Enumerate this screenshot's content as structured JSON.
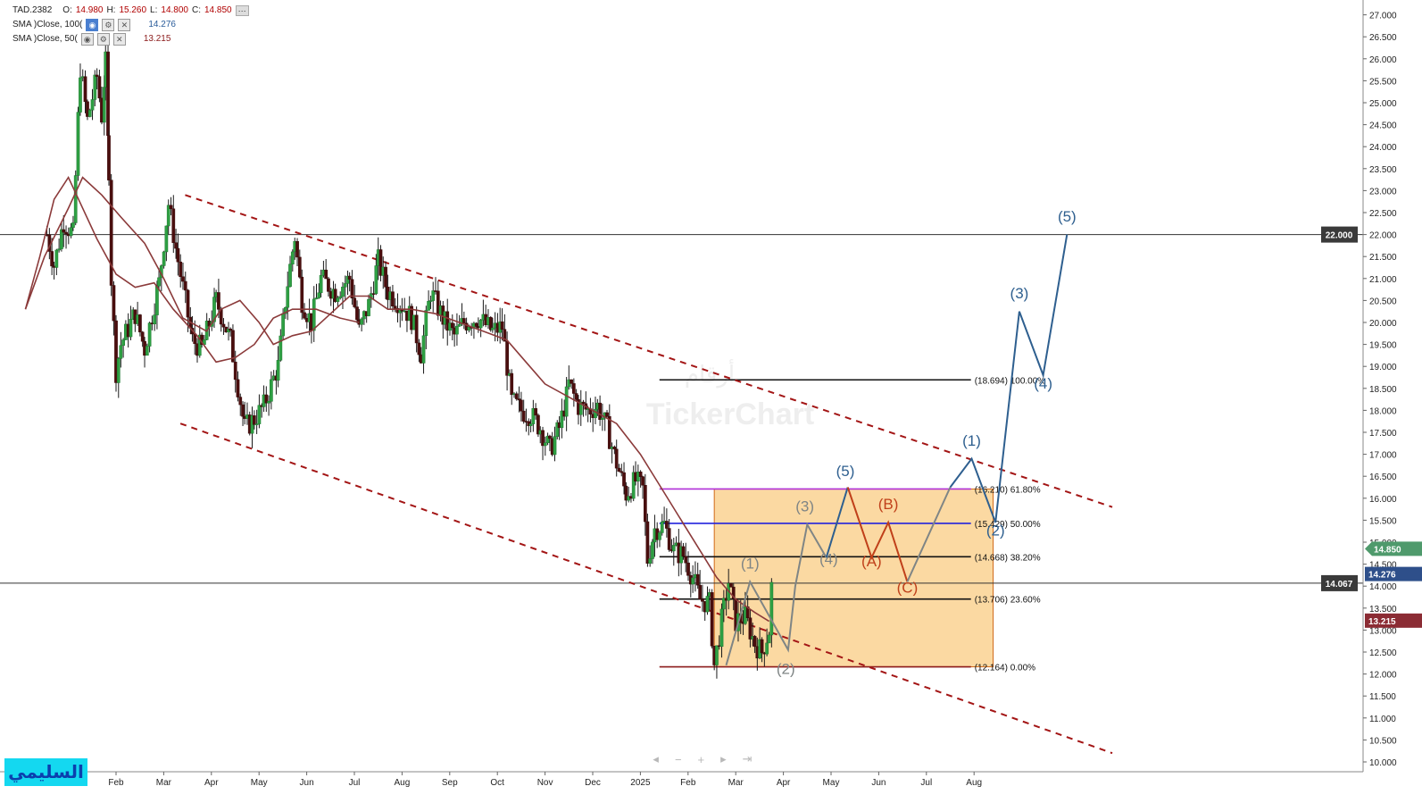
{
  "legend": {
    "symbol": "TAD.2382",
    "o_label": "O:",
    "open": "14.980",
    "h_label": "H:",
    "high": "15.260",
    "l_label": "L:",
    "low": "14.800",
    "c_label": "C:",
    "close": "14.850",
    "sma100_label": "SMA )Close, 100(",
    "sma100_value": "14.276",
    "sma50_label": "SMA )Close, 50(",
    "sma50_value": "13.215"
  },
  "brand": {
    "text": "السليمي"
  },
  "watermark": {
    "text": "TickerChart",
    "arabic": "أرقام"
  },
  "chart_data": {
    "type": "candlestick",
    "title": "",
    "xlabel": "",
    "ylabel": "",
    "ylim": [
      9.8,
      27.3
    ],
    "y_ticks": [
      "10.000",
      "10.500",
      "11.000",
      "11.500",
      "12.000",
      "12.500",
      "13.000",
      "13.500",
      "14.000",
      "14.500",
      "15.000",
      "15.500",
      "16.000",
      "16.500",
      "17.000",
      "17.500",
      "18.000",
      "18.500",
      "19.000",
      "19.500",
      "20.000",
      "20.500",
      "21.000",
      "21.500",
      "22.000",
      "22.500",
      "23.000",
      "23.500",
      "24.000",
      "24.500",
      "25.000",
      "25.500",
      "26.000",
      "26.500",
      "27.000"
    ],
    "x_ticks": [
      {
        "label": "Feb",
        "month": 1
      },
      {
        "label": "Mar",
        "month": 2
      },
      {
        "label": "Apr",
        "month": 3
      },
      {
        "label": "May",
        "month": 4
      },
      {
        "label": "Jun",
        "month": 5
      },
      {
        "label": "Jul",
        "month": 6
      },
      {
        "label": "Aug",
        "month": 7
      },
      {
        "label": "Sep",
        "month": 8
      },
      {
        "label": "Oct",
        "month": 9
      },
      {
        "label": "Nov",
        "month": 10
      },
      {
        "label": "Dec",
        "month": 11
      },
      {
        "label": "2025",
        "month": 12
      },
      {
        "label": "Feb",
        "month": 13
      },
      {
        "label": "Mar",
        "month": 14
      },
      {
        "label": "Apr",
        "month": 15
      },
      {
        "label": "May",
        "month": 16
      },
      {
        "label": "Jun",
        "month": 17
      },
      {
        "label": "Jul",
        "month": 18
      },
      {
        "label": "Aug",
        "month": 19
      }
    ],
    "price_path": [
      [
        -0.45,
        22.0
      ],
      [
        -0.3,
        21.3
      ],
      [
        -0.1,
        22.3
      ],
      [
        0.1,
        22.0
      ],
      [
        0.25,
        25.8
      ],
      [
        0.4,
        24.6
      ],
      [
        0.6,
        25.6
      ],
      [
        0.7,
        24.7
      ],
      [
        0.78,
        25.9
      ],
      [
        0.85,
        23.5
      ],
      [
        0.9,
        21.0
      ],
      [
        1.0,
        18.9
      ],
      [
        1.1,
        19.5
      ],
      [
        1.4,
        20.2
      ],
      [
        1.6,
        19.4
      ],
      [
        1.9,
        20.9
      ],
      [
        2.1,
        22.7
      ],
      [
        2.3,
        21.4
      ],
      [
        2.6,
        19.6
      ],
      [
        2.8,
        19.4
      ],
      [
        3.1,
        20.5
      ],
      [
        3.4,
        19.6
      ],
      [
        3.7,
        17.6
      ],
      [
        3.9,
        17.8
      ],
      [
        4.1,
        18.1
      ],
      [
        4.4,
        19.0
      ],
      [
        4.6,
        20.9
      ],
      [
        4.75,
        21.95
      ],
      [
        4.9,
        20.5
      ],
      [
        5.1,
        20.0
      ],
      [
        5.3,
        21.0
      ],
      [
        5.6,
        20.7
      ],
      [
        5.9,
        21.0
      ],
      [
        6.1,
        19.8
      ],
      [
        6.3,
        20.4
      ],
      [
        6.5,
        21.4
      ],
      [
        6.7,
        20.7
      ],
      [
        7.0,
        20.4
      ],
      [
        7.2,
        20.1
      ],
      [
        7.4,
        19.3
      ],
      [
        7.6,
        20.7
      ],
      [
        7.9,
        20.0
      ],
      [
        8.1,
        19.7
      ],
      [
        8.3,
        20.0
      ],
      [
        8.6,
        20.1
      ],
      [
        8.9,
        19.8
      ],
      [
        9.1,
        19.9
      ],
      [
        9.3,
        18.2
      ],
      [
        9.5,
        18.0
      ],
      [
        9.7,
        17.9
      ],
      [
        9.9,
        17.6
      ],
      [
        10.1,
        17.1
      ],
      [
        10.3,
        17.6
      ],
      [
        10.45,
        18.3
      ],
      [
        10.5,
        18.6
      ],
      [
        10.7,
        18.1
      ],
      [
        10.9,
        18.0
      ],
      [
        11.1,
        18.1
      ],
      [
        11.3,
        17.6
      ],
      [
        11.5,
        16.8
      ],
      [
        11.7,
        16.1
      ],
      [
        11.9,
        16.4
      ],
      [
        12.05,
        16.2
      ],
      [
        12.15,
        14.6
      ],
      [
        12.3,
        15.3
      ],
      [
        12.5,
        15.4
      ],
      [
        12.7,
        14.8
      ],
      [
        12.9,
        14.7
      ],
      [
        13.1,
        14.2
      ],
      [
        13.25,
        13.7
      ],
      [
        13.45,
        13.6
      ],
      [
        13.55,
        12.2
      ],
      [
        13.75,
        13.5
      ],
      [
        13.85,
        14.1
      ],
      [
        14.0,
        13.2
      ],
      [
        14.2,
        13.3
      ],
      [
        14.4,
        12.7
      ],
      [
        14.55,
        12.5
      ],
      [
        14.7,
        13.0
      ],
      [
        14.8,
        14.9
      ]
    ],
    "candle_seed": 7,
    "series": [
      {
        "name": "SMA )Close, 100(",
        "color": "#8b3a3a",
        "points": [
          [
            -0.9,
            20.3
          ],
          [
            -0.5,
            21.5
          ],
          [
            0.0,
            22.6
          ],
          [
            0.3,
            23.3
          ],
          [
            0.7,
            22.9
          ],
          [
            1.1,
            22.4
          ],
          [
            1.6,
            21.8
          ],
          [
            2.0,
            21.0
          ],
          [
            2.4,
            20.1
          ],
          [
            2.9,
            19.8
          ],
          [
            3.2,
            20.3
          ],
          [
            3.6,
            20.5
          ],
          [
            4.0,
            20.0
          ],
          [
            4.3,
            19.5
          ],
          [
            4.7,
            19.7
          ],
          [
            5.1,
            19.8
          ],
          [
            5.5,
            20.2
          ],
          [
            5.9,
            20.6
          ],
          [
            6.3,
            20.6
          ],
          [
            6.7,
            20.3
          ],
          [
            7.2,
            20.3
          ],
          [
            7.7,
            20.2
          ],
          [
            8.2,
            20.0
          ],
          [
            8.7,
            19.8
          ],
          [
            9.2,
            19.6
          ],
          [
            9.6,
            19.1
          ],
          [
            10.0,
            18.6
          ],
          [
            10.5,
            18.3
          ],
          [
            11.0,
            18.0
          ],
          [
            11.5,
            17.7
          ],
          [
            12.0,
            17.0
          ],
          [
            12.4,
            16.3
          ],
          [
            12.8,
            15.6
          ],
          [
            13.2,
            14.9
          ],
          [
            13.6,
            14.2
          ],
          [
            14.0,
            13.7
          ],
          [
            14.4,
            13.4
          ],
          [
            14.7,
            13.2
          ]
        ]
      },
      {
        "name": "SMA )Close, 50(",
        "color": "#8b3a3a",
        "points": [
          [
            -0.9,
            20.3
          ],
          [
            -0.6,
            21.5
          ],
          [
            -0.3,
            22.8
          ],
          [
            0.0,
            23.3
          ],
          [
            0.3,
            22.6
          ],
          [
            0.6,
            21.9
          ],
          [
            1.0,
            21.1
          ],
          [
            1.4,
            20.8
          ],
          [
            1.8,
            20.9
          ],
          [
            2.2,
            20.3
          ],
          [
            2.7,
            19.7
          ],
          [
            3.1,
            19.1
          ],
          [
            3.5,
            19.2
          ],
          [
            3.9,
            19.5
          ],
          [
            4.3,
            20.1
          ],
          [
            4.7,
            20.3
          ],
          [
            5.2,
            20.3
          ],
          [
            5.7,
            20.1
          ],
          [
            6.1,
            20.0
          ]
        ]
      }
    ],
    "last_price": 14.85,
    "price_tags": [
      {
        "label": "14.850",
        "value": 14.85,
        "bg": "#4f9a6c",
        "shape": "arrow"
      },
      {
        "label": "14.276",
        "value": 14.276,
        "bg": "#2e4f8a"
      },
      {
        "label": "13.215",
        "value": 13.215,
        "bg": "#8b2c34"
      },
      {
        "label": "14.067",
        "value": 14.067,
        "bg": "#3a3a3a",
        "inside": true
      },
      {
        "label": "22.000",
        "value": 22.0,
        "bg": "#3a3a3a",
        "inside": true
      }
    ],
    "horizontal_lines": [
      {
        "value": 22.0,
        "color": "#333333",
        "full": true
      },
      {
        "value": 14.067,
        "color": "#333333",
        "full": true
      }
    ],
    "fibonacci": {
      "start_month": 12.4,
      "end_month": 16.5,
      "levels": [
        {
          "value": 18.694,
          "label": "(18.694) 100.00%",
          "color": "#111111"
        },
        {
          "value": 16.21,
          "label": "(16.210) 61.80%",
          "color": "#b030d8"
        },
        {
          "value": 15.429,
          "label": "(15.429) 50.00%",
          "color": "#2222dd"
        },
        {
          "value": 14.668,
          "label": "(14.668) 38.20%",
          "color": "#111111"
        },
        {
          "value": 13.706,
          "label": "(13.706) 23.60%",
          "color": "#111111"
        },
        {
          "value": 12.164,
          "label": "(12.164) 0.00%",
          "color": "#8b1a1a"
        }
      ]
    },
    "box": {
      "m0": 13.55,
      "m1": 19.4,
      "y0": 12.164,
      "y1": 16.21,
      "fill": "#fbd9a2",
      "stroke": "#d06a1a"
    },
    "channel_lines": [
      {
        "p1": [
          2.45,
          22.9
        ],
        "p2": [
          21.9,
          15.8
        ],
        "color": "#a31515"
      },
      {
        "p1": [
          2.35,
          17.7
        ],
        "p2": [
          21.9,
          10.2
        ],
        "color": "#a31515"
      }
    ],
    "waves": [
      {
        "name": "gray",
        "color": "#7f8585",
        "points": [
          [
            13.8,
            12.2
          ],
          [
            14.3,
            14.1
          ],
          [
            15.1,
            12.55
          ],
          [
            15.25,
            14.0
          ],
          [
            15.5,
            15.4
          ],
          [
            15.9,
            14.65
          ]
        ],
        "labels": [
          {
            "text": "(1)",
            "at": [
              14.3,
              14.4
            ]
          },
          {
            "text": "(2)",
            "at": [
              15.05,
              12.0
            ]
          },
          {
            "text": "(3)",
            "at": [
              15.45,
              15.7
            ]
          },
          {
            "text": "(4)",
            "at": [
              15.95,
              14.5
            ]
          }
        ]
      },
      {
        "name": "blue",
        "color": "#2e5f8f",
        "points": [
          [
            15.9,
            14.65
          ],
          [
            16.35,
            16.25
          ]
        ],
        "labels": [
          {
            "text": "(5)",
            "at": [
              16.3,
              16.5
            ]
          }
        ]
      },
      {
        "name": "orange",
        "color": "#c0401a",
        "points": [
          [
            16.35,
            16.25
          ],
          [
            16.85,
            14.65
          ],
          [
            17.2,
            15.45
          ],
          [
            17.6,
            14.1
          ]
        ],
        "labels": [
          {
            "text": "(A)",
            "at": [
              16.85,
              14.45
            ]
          },
          {
            "text": "(B)",
            "at": [
              17.2,
              15.75
            ]
          },
          {
            "text": "(C)",
            "at": [
              17.6,
              13.85
            ]
          }
        ]
      },
      {
        "name": "gray2",
        "color": "#7f8585",
        "points": [
          [
            17.6,
            14.1
          ],
          [
            18.5,
            16.25
          ]
        ],
        "labels": []
      },
      {
        "name": "blue2",
        "color": "#2e5f8f",
        "points": [
          [
            18.5,
            16.25
          ],
          [
            18.95,
            16.9
          ],
          [
            19.45,
            15.45
          ],
          [
            19.95,
            20.25
          ],
          [
            20.45,
            18.8
          ],
          [
            20.95,
            22.0
          ]
        ],
        "labels": [
          {
            "text": "(1)",
            "at": [
              18.95,
              17.2
            ]
          },
          {
            "text": "(2)",
            "at": [
              19.45,
              15.15
            ]
          },
          {
            "text": "(3)",
            "at": [
              19.95,
              20.55
            ]
          },
          {
            "text": "(4)",
            "at": [
              20.45,
              18.5
            ]
          },
          {
            "text": "(5)",
            "at": [
              20.95,
              22.3
            ]
          }
        ]
      }
    ]
  }
}
